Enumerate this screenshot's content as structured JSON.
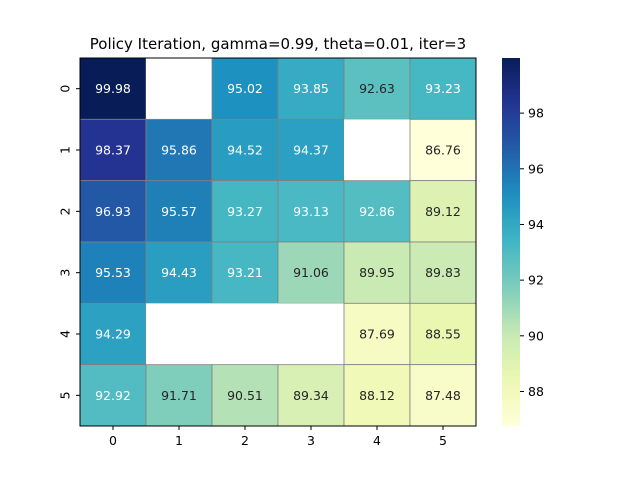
{
  "chart_data": {
    "type": "heatmap",
    "title": "Policy Iteration, gamma=0.99, theta=0.01, iter=3",
    "xlabel": "",
    "ylabel": "",
    "x_ticks": [
      "0",
      "1",
      "2",
      "3",
      "4",
      "5"
    ],
    "y_ticks": [
      "0",
      "1",
      "2",
      "3",
      "4",
      "5"
    ],
    "values": [
      [
        99.98,
        null,
        95.02,
        93.85,
        92.63,
        93.23
      ],
      [
        98.37,
        95.86,
        94.52,
        94.37,
        null,
        86.76
      ],
      [
        96.93,
        95.57,
        93.27,
        93.13,
        92.86,
        89.12
      ],
      [
        95.53,
        94.43,
        93.21,
        91.06,
        89.95,
        89.83
      ],
      [
        94.29,
        null,
        null,
        null,
        87.69,
        88.55
      ],
      [
        92.92,
        91.71,
        90.51,
        89.34,
        88.12,
        87.48
      ]
    ],
    "value_labels": [
      [
        "99.98",
        "",
        "95.02",
        "93.85",
        "92.63",
        "93.23"
      ],
      [
        "98.37",
        "95.86",
        "94.52",
        "94.37",
        "",
        "86.76"
      ],
      [
        "96.93",
        "95.57",
        "93.27",
        "93.13",
        "92.86",
        "89.12"
      ],
      [
        "95.53",
        "94.43",
        "93.21",
        "91.06",
        "89.95",
        "89.83"
      ],
      [
        "94.29",
        "",
        "",
        "",
        "87.69",
        "88.55"
      ],
      [
        "92.92",
        "91.71",
        "90.51",
        "89.34",
        "88.12",
        "87.48"
      ]
    ],
    "colormap": "YlGnBu",
    "vmin": 86.76,
    "vmax": 99.98,
    "colorbar_ticks": [
      "88",
      "90",
      "92",
      "94",
      "96",
      "98"
    ],
    "colorbar_tick_values": [
      88,
      90,
      92,
      94,
      96,
      98
    ],
    "grid": false,
    "legend": "colorbar-right",
    "cell_border_color": "#808080"
  }
}
